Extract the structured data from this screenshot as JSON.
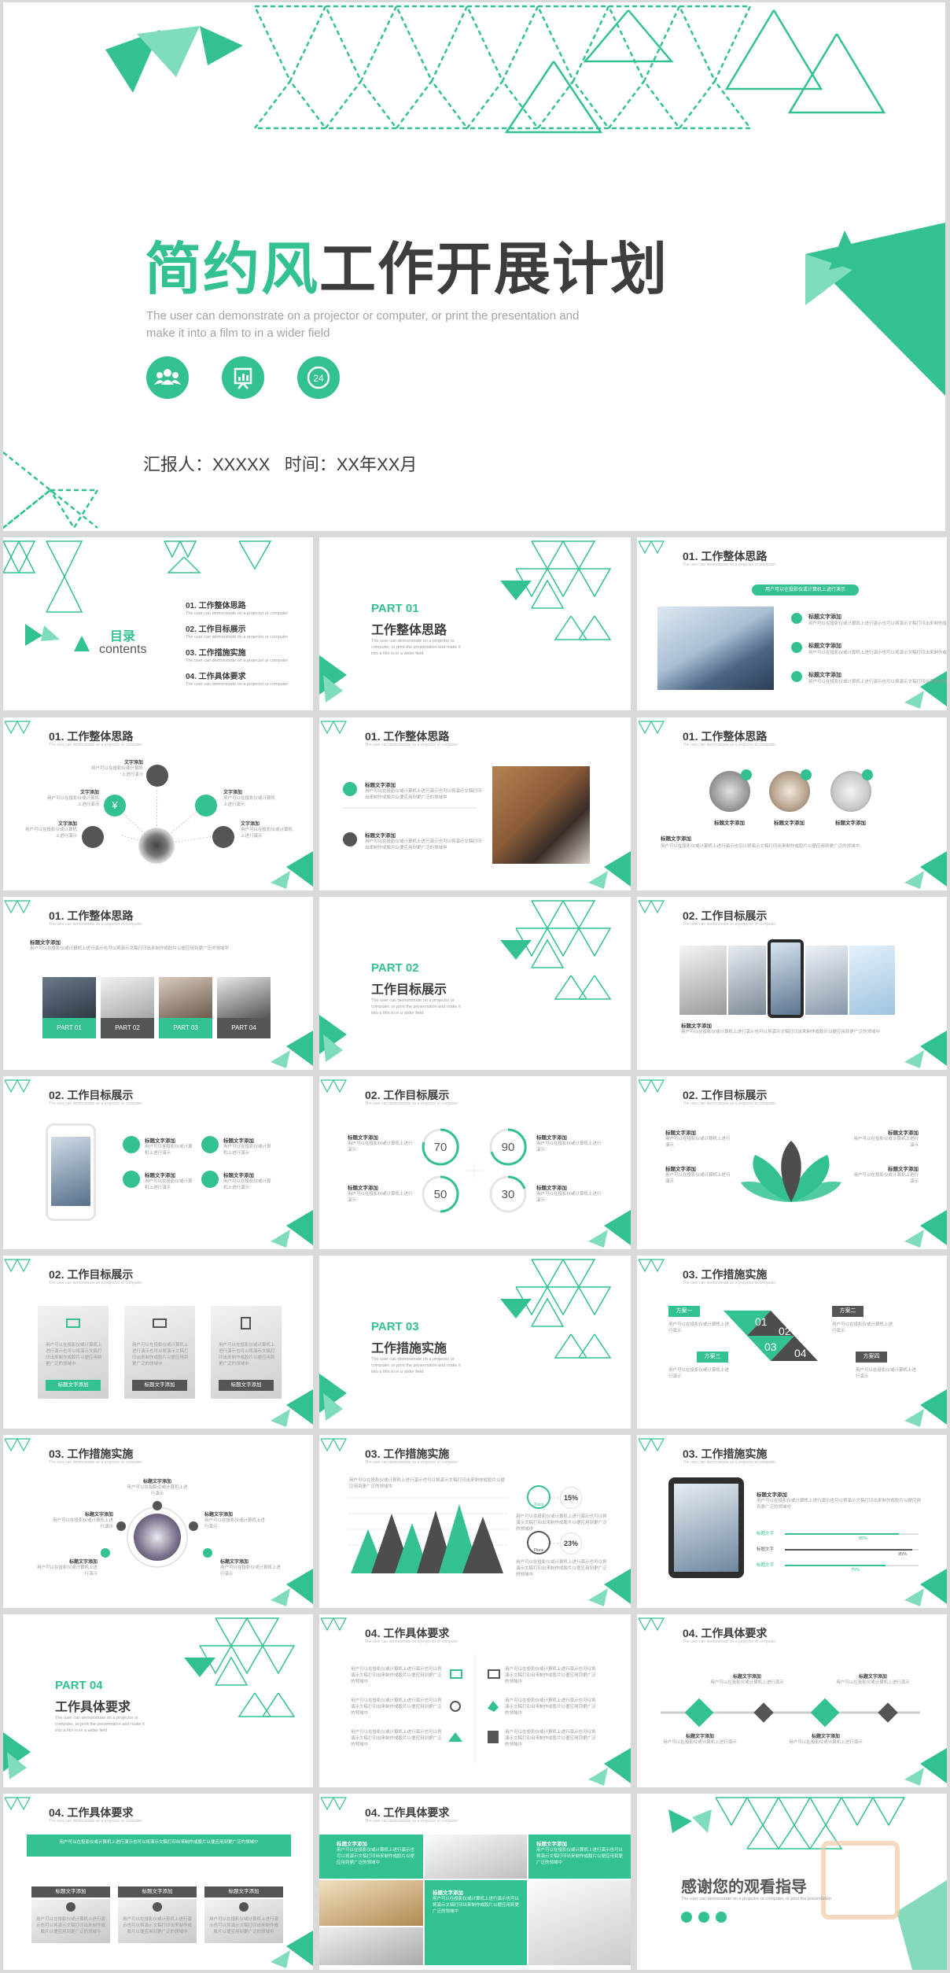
{
  "colors": {
    "accent": "#33c28f",
    "accent_light": "#7fdcbc",
    "dark": "#555555",
    "text": "#3d3d3d",
    "muted": "#a3a3a3",
    "bg": "#d9d9d9"
  },
  "cover": {
    "title_green": "简约风",
    "title_dark": "工作开展计划",
    "subtitle_line1": "The user can demonstrate on a projector or computer, or print the presentation and",
    "subtitle_line2": "make it into a film to in a wider field",
    "icon_clock_text": "24",
    "reporter": "汇报人：XXXXX   时间：XX年XX月"
  },
  "toc": {
    "title": "目录",
    "subtitle": "contents",
    "items": [
      "01. 工作整体思路",
      "02. 工作目标展示",
      "03. 工作措施实施",
      "04. 工作具体要求"
    ],
    "item_sub": "The user can demonstrate on a projector or computer"
  },
  "parts": [
    {
      "label": "PART 01",
      "title": "工作整体思路"
    },
    {
      "label": "PART 02",
      "title": "工作目标展示"
    },
    {
      "label": "PART 03",
      "title": "工作措施实施"
    },
    {
      "label": "PART 04",
      "title": "工作具体要求"
    }
  ],
  "part_desc": [
    "The user can demonstrate on a projector or",
    "computer, or print the presentation and make it",
    "into a film to in a wider field"
  ],
  "section_titles": {
    "s01": "01. 工作整体思路",
    "s02": "02. 工作目标展示",
    "s03": "03. 工作措施实施",
    "s04": "04. 工作具体要求"
  },
  "subtitle_small": "The user can demonstrate on a projector or computer",
  "common": {
    "heading": "标题文字添加",
    "text_add": "文字添加",
    "body_short": "用户可以在投影仪或计算机上进行演示",
    "body_long": "用户可以在投影仪或计算机上进行演示也可以将演示文稿打印出来制作成胶片以便应用到更广泛的领域中"
  },
  "s1a": {
    "banner": "用户可以在投影仪或计算机上进行演示"
  },
  "s1d": {
    "photo_labels": [
      "标题文字添加",
      "标题文字添加",
      "标题文字添加"
    ]
  },
  "s1e": {
    "tabs": [
      "PART 01",
      "PART 02",
      "PART 03",
      "PART 04"
    ]
  },
  "s2c": {
    "values": [
      "70",
      "90",
      "50",
      "30"
    ]
  },
  "s3a": {
    "plans": [
      "方案一",
      "方案二",
      "方案三",
      "方案四"
    ],
    "nums": [
      "01",
      "02",
      "03",
      "04"
    ]
  },
  "s3c": {
    "badges": [
      "15%",
      "23%"
    ],
    "icon_labels": [
      "Truck",
      "Plane"
    ]
  },
  "s3d": {
    "bars": [
      {
        "label": "标题文字",
        "value": "85%"
      },
      {
        "label": "标题文字",
        "value": "95%"
      },
      {
        "label": "标题文字",
        "value": "75%"
      }
    ]
  },
  "end": {
    "title": "感谢您的观看指导",
    "sub": "The user can demonstrate on a projector or computer, or print the presentation"
  }
}
